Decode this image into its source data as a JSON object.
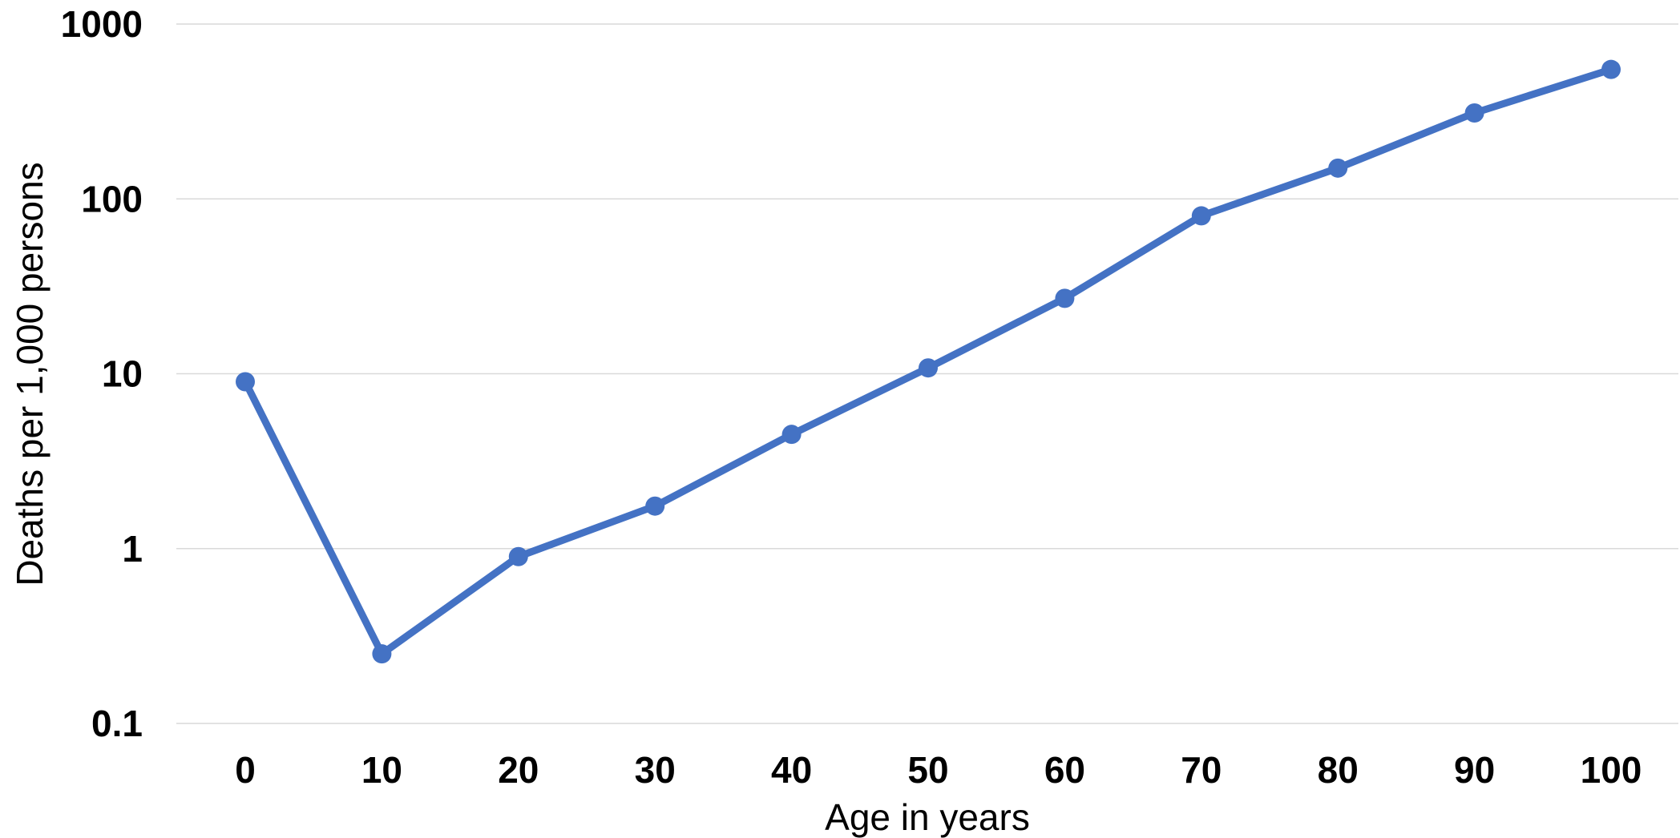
{
  "chart_data": {
    "type": "line",
    "title": "",
    "xlabel": "Age in years",
    "ylabel": "Deaths per 1,000 persons",
    "x": [
      0,
      10,
      20,
      30,
      40,
      50,
      60,
      70,
      80,
      90,
      100
    ],
    "x_ticks": [
      "0",
      "10",
      "20",
      "30",
      "40",
      "50",
      "60",
      "70",
      "80",
      "90",
      "100"
    ],
    "y_scale": "log",
    "y_ticks": [
      "0.1",
      "1",
      "10",
      "100",
      "1000"
    ],
    "ylim": [
      0.1,
      1000
    ],
    "grid": true,
    "legend": "none",
    "series": [
      {
        "color": "#4472c4",
        "values": [
          9,
          0.25,
          0.9,
          1.75,
          4.5,
          10.8,
          27,
          80,
          150,
          310,
          550
        ]
      }
    ]
  }
}
